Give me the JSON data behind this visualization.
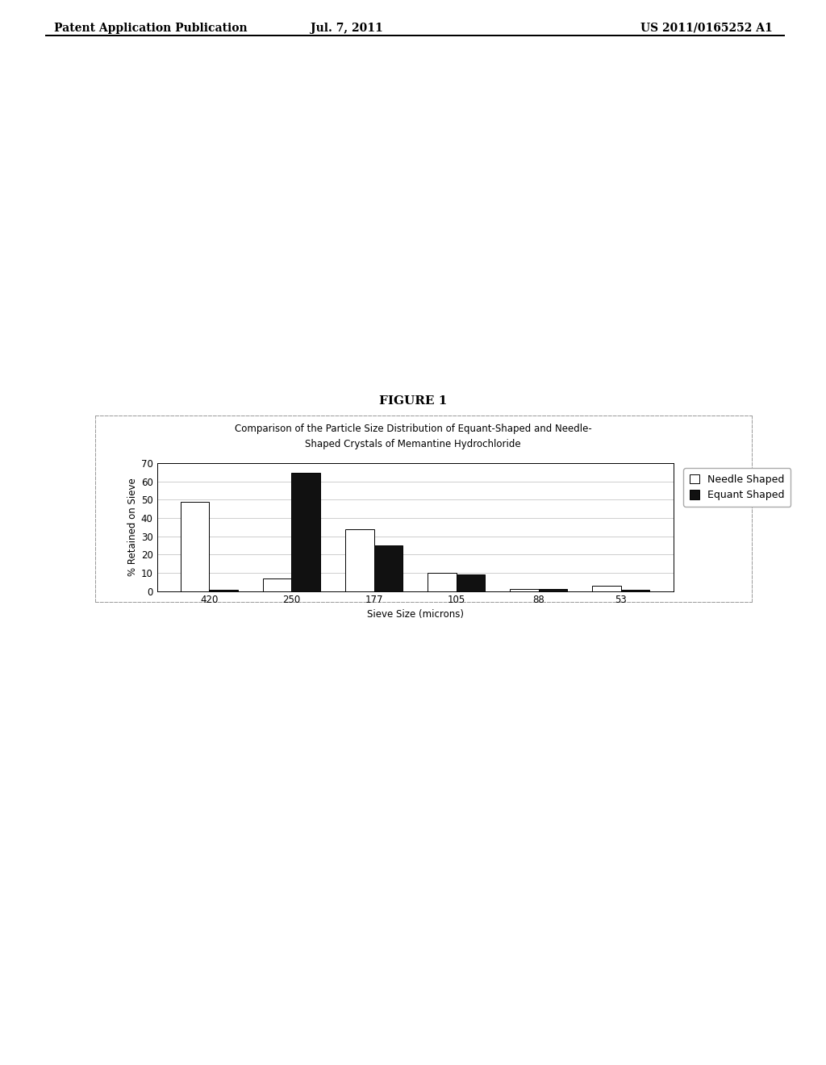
{
  "figure_label": "FIGURE 1",
  "header_left": "Patent Application Publication",
  "header_center": "Jul. 7, 2011",
  "header_right": "US 2011/0165252 A1",
  "chart_title_line1": "Comparison of the Particle Size Distribution of Equant-Shaped and Needle-",
  "chart_title_line2": "Shaped Crystals of Memantine Hydrochloride",
  "categories": [
    "420",
    "250",
    "177",
    "105",
    "88",
    "53"
  ],
  "needle_shaped": [
    49,
    7,
    34,
    10,
    1,
    3
  ],
  "equant_shaped": [
    0.5,
    65,
    25,
    9,
    1,
    0.5
  ],
  "ylabel": "% Retained on Sieve",
  "xlabel": "Sieve Size (microns)",
  "ylim": [
    0,
    70
  ],
  "yticks": [
    0,
    10,
    20,
    30,
    40,
    50,
    60,
    70
  ],
  "legend_needle": "Needle Shaped",
  "legend_equant": "Equant Shaped",
  "bar_width": 0.35,
  "bg_color": "#ffffff",
  "grid_color": "#bbbbbb",
  "needle_color": "#ffffff",
  "needle_edge": "#000000",
  "equant_color": "#111111",
  "header_fontsize": 10,
  "figure_label_fontsize": 11,
  "chart_title_fontsize": 8.5,
  "axis_fontsize": 8.5,
  "legend_fontsize": 9
}
